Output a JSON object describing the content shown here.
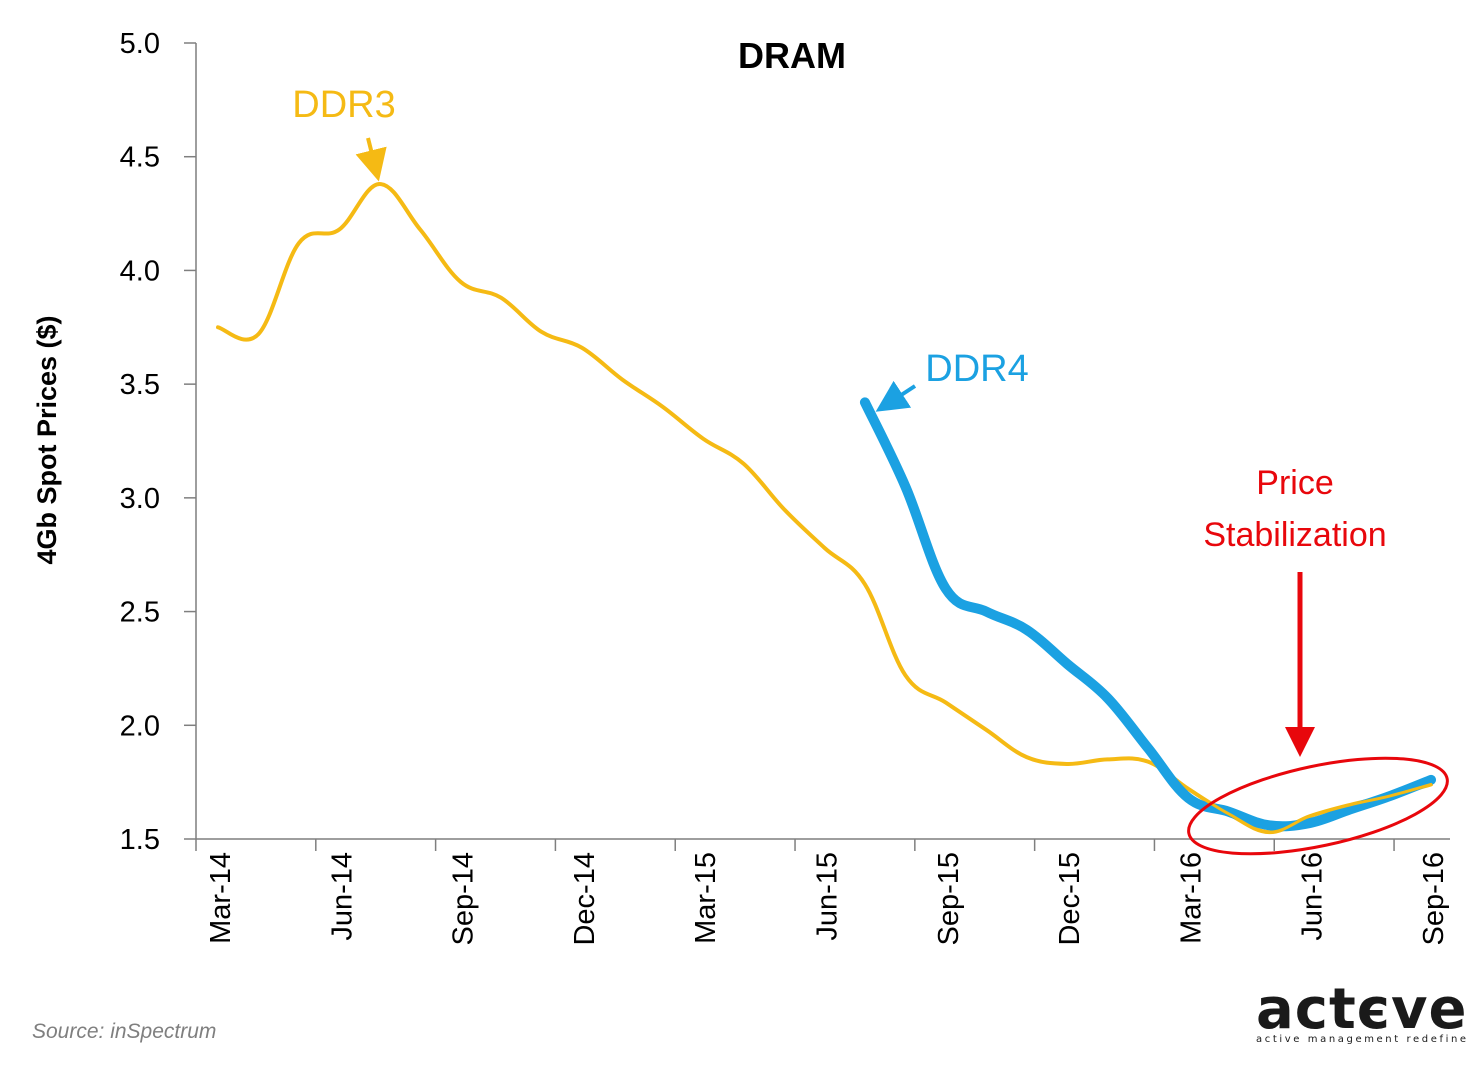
{
  "chart_data": {
    "type": "line",
    "title": "DRAM",
    "xlabel": "",
    "ylabel": "4Gb Spot Prices ($)",
    "ylim": [
      1.5,
      5.0
    ],
    "yticks": [
      "5.0",
      "4.5",
      "4.0",
      "3.5",
      "3.0",
      "2.5",
      "2.0",
      "1.5"
    ],
    "categories": [
      "Mar-14",
      "Jun-14",
      "Sep-14",
      "Dec-14",
      "Mar-15",
      "Jun-15",
      "Sep-15",
      "Dec-15",
      "Mar-16",
      "Jun-16",
      "Sep-16"
    ],
    "grid": false,
    "series": [
      {
        "name": "DDR3",
        "color": "#F5BA14",
        "x": [
          "2014-03",
          "2014-04",
          "2014-05",
          "2014-06",
          "2014-07",
          "2014-08",
          "2014-09",
          "2014-10",
          "2014-11",
          "2014-12",
          "2015-01",
          "2015-02",
          "2015-03",
          "2015-04",
          "2015-05",
          "2015-06",
          "2015-07",
          "2015-08",
          "2015-09",
          "2015-10",
          "2015-11",
          "2015-12",
          "2016-01",
          "2016-02",
          "2016-03",
          "2016-04",
          "2016-05",
          "2016-06",
          "2016-07",
          "2016-08",
          "2016-09"
        ],
        "values": [
          3.75,
          3.72,
          4.12,
          4.18,
          4.38,
          4.18,
          3.95,
          3.88,
          3.73,
          3.66,
          3.52,
          3.4,
          3.26,
          3.15,
          2.95,
          2.78,
          2.62,
          2.22,
          2.1,
          1.98,
          1.86,
          1.83,
          1.85,
          1.84,
          1.72,
          1.61,
          1.53,
          1.6,
          1.65,
          1.69,
          1.74
        ]
      },
      {
        "name": "DDR4",
        "color": "#1BA1E2",
        "x": [
          "2015-07",
          "2015-08",
          "2015-09",
          "2015-10",
          "2015-11",
          "2015-12",
          "2016-01",
          "2016-02",
          "2016-03",
          "2016-04",
          "2016-05",
          "2016-06",
          "2016-07",
          "2016-08",
          "2016-09"
        ],
        "values": [
          3.42,
          3.05,
          2.6,
          2.5,
          2.42,
          2.27,
          2.12,
          1.9,
          1.68,
          1.62,
          1.56,
          1.57,
          1.63,
          1.69,
          1.76
        ]
      }
    ],
    "annotations": [
      {
        "text": "DDR3",
        "color": "#F5BA14"
      },
      {
        "text": "DDR4",
        "color": "#1BA1E2"
      },
      {
        "text": "Price",
        "color": "#E8070C"
      },
      {
        "text": "Stabilization",
        "color": "#E8070C"
      }
    ]
  },
  "source": "Source: inSpectrum",
  "logo": {
    "word": "actєve",
    "tagline": "active management redefined."
  }
}
